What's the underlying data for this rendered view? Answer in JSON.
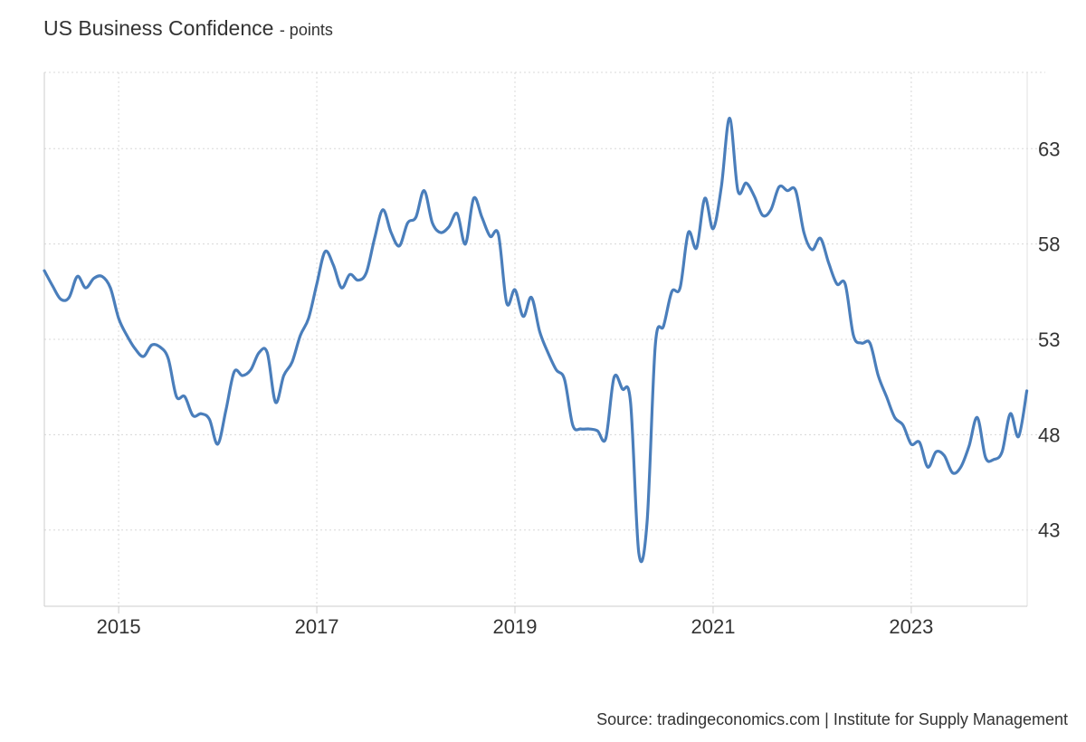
{
  "chart_data": {
    "type": "line",
    "title": "US Business Confidence",
    "unit": "- points",
    "source": "Source: tradingeconomics.com | Institute for Supply Management",
    "start_month": "2014-04",
    "frequency": "monthly",
    "ylim": [
      39,
      67
    ],
    "yticks": [
      43,
      48,
      53,
      58,
      63
    ],
    "xticks": [
      "2015",
      "2017",
      "2019",
      "2021",
      "2023"
    ],
    "xtick_years": [
      2015,
      2017,
      2019,
      2021,
      2023
    ],
    "xlim_years": [
      2014.25,
      2024.17
    ],
    "grid": true,
    "line_color": "#4a7ebb",
    "series": [
      {
        "name": "US Business Confidence",
        "values": [
          56.6,
          55.8,
          55.1,
          55.2,
          56.3,
          55.7,
          56.2,
          56.3,
          55.7,
          54.1,
          53.2,
          52.5,
          52.1,
          52.7,
          52.6,
          52.0,
          50.0,
          50.0,
          49.0,
          49.1,
          48.8,
          47.5,
          49.3,
          51.3,
          51.1,
          51.4,
          52.3,
          52.3,
          49.7,
          51.1,
          51.8,
          53.2,
          54.1,
          55.9,
          57.6,
          56.9,
          55.7,
          56.4,
          56.1,
          56.5,
          58.3,
          59.8,
          58.6,
          57.9,
          59.1,
          59.4,
          60.8,
          59.1,
          58.6,
          58.9,
          59.6,
          58.0,
          60.4,
          59.4,
          58.4,
          58.5,
          54.9,
          55.6,
          54.2,
          55.2,
          53.4,
          52.3,
          51.4,
          50.9,
          48.5,
          48.3,
          48.3,
          48.2,
          47.8,
          51.0,
          50.4,
          49.7,
          41.8,
          43.4,
          52.7,
          53.7,
          55.5,
          55.7,
          58.6,
          57.8,
          60.4,
          58.8,
          61.0,
          64.6,
          60.8,
          61.2,
          60.5,
          59.5,
          59.8,
          61.0,
          60.8,
          60.8,
          58.6,
          57.7,
          58.3,
          57.0,
          55.9,
          55.9,
          53.2,
          52.8,
          52.8,
          51.1,
          50.0,
          48.9,
          48.5,
          47.5,
          47.6,
          46.3,
          47.1,
          46.9,
          46.0,
          46.3,
          47.4,
          48.9,
          46.8,
          46.7,
          47.1,
          49.1,
          47.9,
          50.3
        ]
      }
    ]
  }
}
